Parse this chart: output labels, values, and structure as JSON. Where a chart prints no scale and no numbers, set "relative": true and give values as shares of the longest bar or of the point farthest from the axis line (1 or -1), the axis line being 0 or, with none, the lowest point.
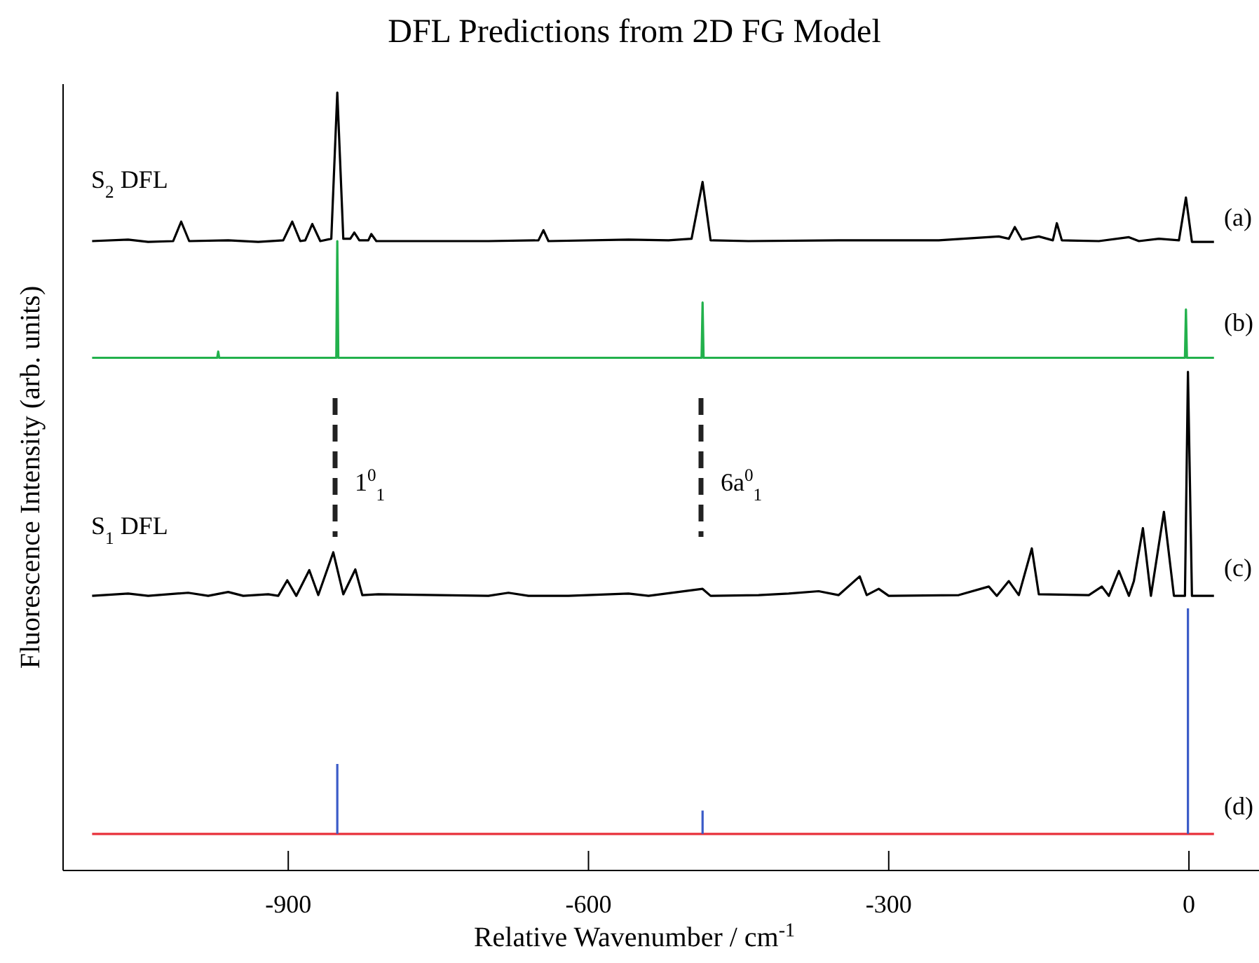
{
  "chart_data": {
    "type": "line",
    "title": "DFL Predictions from 2D FG Model",
    "xlabel": "Relative Wavenumber / cm$^{-1}$",
    "ylabel": "Fluorescence Intensity (arb. units)",
    "relative": true,
    "xlim": [
      -1125,
      70
    ],
    "xticks": [
      -900,
      -600,
      -300,
      0
    ],
    "grid": false,
    "marker": "none",
    "line_style": "solid",
    "series": [
      {
        "color": "#000000",
        "x": [
          -1096,
          -1060,
          -1040,
          -1015,
          -1007,
          -999,
          -960,
          -930,
          -905,
          -896,
          -888,
          -883,
          -876,
          -868,
          -857,
          -851,
          -845,
          -838,
          -834,
          -829,
          -820,
          -817,
          -812,
          -700,
          -650,
          -645,
          -640,
          -560,
          -520,
          -497,
          -486,
          -478,
          -440,
          -350,
          -250,
          -190,
          -180,
          -174,
          -167,
          -150,
          -136,
          -132,
          -127,
          -90,
          -60,
          -50,
          -30,
          -10,
          -3,
          3,
          25
        ],
        "values": [
          0.809,
          0.811,
          0.808,
          0.809,
          0.834,
          0.809,
          0.81,
          0.808,
          0.81,
          0.834,
          0.809,
          0.81,
          0.831,
          0.809,
          0.812,
          1.0,
          0.812,
          0.812,
          0.82,
          0.81,
          0.81,
          0.818,
          0.809,
          0.809,
          0.81,
          0.823,
          0.809,
          0.811,
          0.81,
          0.812,
          0.885,
          0.81,
          0.809,
          0.81,
          0.81,
          0.815,
          0.812,
          0.827,
          0.811,
          0.815,
          0.81,
          0.832,
          0.81,
          0.809,
          0.814,
          0.809,
          0.812,
          0.81,
          0.865,
          0.808,
          0.808
        ]
      },
      {
        "color": "#22b14c",
        "x": [
          -1096,
          -971,
          -970,
          -969,
          -852,
          -851,
          -850,
          -487,
          -486,
          -485,
          -4,
          -3,
          -2,
          25
        ],
        "values": [
          0.659,
          0.659,
          0.667,
          0.659,
          0.659,
          0.809,
          0.659,
          0.659,
          0.73,
          0.659,
          0.659,
          0.721,
          0.659,
          0.659
        ]
      },
      {
        "color": "#000000",
        "x": [
          -1096,
          -1060,
          -1040,
          -1000,
          -980,
          -960,
          -945,
          -920,
          -910,
          -901,
          -892,
          -879,
          -870,
          -855,
          -845,
          -833,
          -826,
          -810,
          -700,
          -680,
          -660,
          -620,
          -560,
          -540,
          -486,
          -478,
          -430,
          -400,
          -370,
          -350,
          -329,
          -322,
          -310,
          -300,
          -230,
          -200,
          -192,
          -180,
          -170,
          -157,
          -150,
          -100,
          -87,
          -80,
          -70,
          -60,
          -55,
          -46,
          -38,
          -25,
          -15,
          -4,
          -1,
          3,
          25
        ],
        "values": [
          0.353,
          0.356,
          0.353,
          0.357,
          0.353,
          0.358,
          0.353,
          0.355,
          0.353,
          0.373,
          0.353,
          0.386,
          0.354,
          0.409,
          0.355,
          0.387,
          0.354,
          0.355,
          0.353,
          0.357,
          0.353,
          0.353,
          0.356,
          0.353,
          0.362,
          0.353,
          0.354,
          0.356,
          0.359,
          0.354,
          0.378,
          0.354,
          0.362,
          0.353,
          0.354,
          0.365,
          0.353,
          0.372,
          0.354,
          0.414,
          0.355,
          0.354,
          0.365,
          0.353,
          0.385,
          0.353,
          0.372,
          0.44,
          0.353,
          0.461,
          0.353,
          0.353,
          0.641,
          0.353,
          0.353
        ]
      },
      {
        "color": "#e8303a",
        "x": [
          -1096,
          25
        ],
        "values": [
          0.047,
          0.047
        ]
      },
      {
        "color": "#3b5bc8",
        "x": [
          -851,
          -851,
          -700,
          -486,
          -486,
          -200,
          -1,
          -1
        ],
        "values": [
          0.047,
          0.137,
          null,
          0.047,
          0.077,
          null,
          0.047,
          0.337
        ]
      }
    ],
    "annotations": [
      "S$_{2}$ DFL",
      "S$_{1}$ DFL",
      "(a)",
      "(b)",
      "(c)",
      "(d)",
      "1$^{0}$$_{1}$",
      "6a$^{0}$$_{1}$"
    ]
  }
}
